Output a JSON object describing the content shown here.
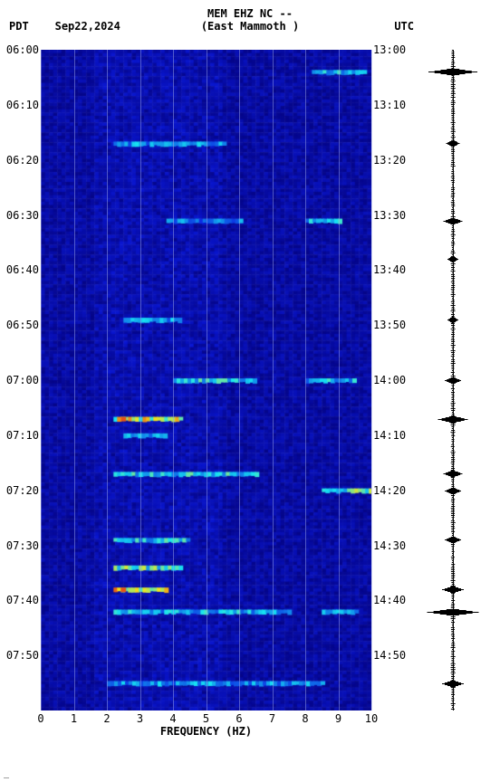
{
  "header": {
    "title": "MEM EHZ NC --",
    "subtitle": "(East Mammoth )",
    "left_tz": "PDT",
    "date": "Sep22,2024",
    "right_tz": "UTC"
  },
  "spectrogram": {
    "type": "spectrogram",
    "background_color": "#0804c7",
    "grid_color": "#9ba6e8",
    "xlabel": "FREQUENCY (HZ)",
    "xlim": [
      0,
      10
    ],
    "xticks": [
      0,
      1,
      2,
      3,
      4,
      5,
      6,
      7,
      8,
      9,
      10
    ],
    "left_ticks": [
      "06:00",
      "06:10",
      "06:20",
      "06:30",
      "06:40",
      "06:50",
      "07:00",
      "07:10",
      "07:20",
      "07:30",
      "07:40",
      "07:50"
    ],
    "right_ticks": [
      "13:00",
      "13:10",
      "13:20",
      "13:30",
      "13:40",
      "13:50",
      "14:00",
      "14:10",
      "14:20",
      "14:30",
      "14:40",
      "14:50"
    ],
    "time_range_min": 0,
    "time_range_max": 120,
    "colormap": {
      "low": "#04027d",
      "mid": "#0b1be3",
      "cyan": "#17e5f2",
      "yellow": "#f5e618",
      "red": "#e22315"
    },
    "events": [
      {
        "t": 4,
        "f_start": 8.2,
        "f_end": 9.8,
        "intensity": 0.55
      },
      {
        "t": 17,
        "f_start": 2.2,
        "f_end": 5.5,
        "intensity": 0.5
      },
      {
        "t": 31,
        "f_start": 3.8,
        "f_end": 6.0,
        "intensity": 0.45
      },
      {
        "t": 31,
        "f_start": 8.0,
        "f_end": 9.0,
        "intensity": 0.55
      },
      {
        "t": 49,
        "f_start": 2.5,
        "f_end": 4.2,
        "intensity": 0.5
      },
      {
        "t": 60,
        "f_start": 4.0,
        "f_end": 6.5,
        "intensity": 0.6
      },
      {
        "t": 60,
        "f_start": 8.0,
        "f_end": 9.5,
        "intensity": 0.55
      },
      {
        "t": 67,
        "f_start": 2.2,
        "f_end": 4.2,
        "intensity": 0.85
      },
      {
        "t": 70,
        "f_start": 2.5,
        "f_end": 3.8,
        "intensity": 0.5
      },
      {
        "t": 77,
        "f_start": 2.2,
        "f_end": 6.5,
        "intensity": 0.6
      },
      {
        "t": 80,
        "f_start": 8.5,
        "f_end": 10.0,
        "intensity": 0.7
      },
      {
        "t": 89,
        "f_start": 2.2,
        "f_end": 4.5,
        "intensity": 0.6
      },
      {
        "t": 94,
        "f_start": 2.2,
        "f_end": 4.2,
        "intensity": 0.7
      },
      {
        "t": 98,
        "f_start": 2.2,
        "f_end": 3.8,
        "intensity": 0.88
      },
      {
        "t": 102,
        "f_start": 2.2,
        "f_end": 7.5,
        "intensity": 0.55
      },
      {
        "t": 102,
        "f_start": 8.5,
        "f_end": 9.5,
        "intensity": 0.5
      },
      {
        "t": 115,
        "f_start": 2.0,
        "f_end": 8.5,
        "intensity": 0.5
      }
    ]
  },
  "trace": {
    "type": "waveform",
    "color": "#000000",
    "spikes": [
      {
        "t": 4,
        "amp": 0.9
      },
      {
        "t": 17,
        "amp": 0.25
      },
      {
        "t": 31,
        "amp": 0.35
      },
      {
        "t": 38,
        "amp": 0.2
      },
      {
        "t": 49,
        "amp": 0.2
      },
      {
        "t": 60,
        "amp": 0.3
      },
      {
        "t": 67,
        "amp": 0.55
      },
      {
        "t": 77,
        "amp": 0.35
      },
      {
        "t": 80,
        "amp": 0.3
      },
      {
        "t": 89,
        "amp": 0.3
      },
      {
        "t": 98,
        "amp": 0.4
      },
      {
        "t": 102,
        "amp": 0.95
      },
      {
        "t": 115,
        "amp": 0.4
      }
    ]
  },
  "footer": "_"
}
